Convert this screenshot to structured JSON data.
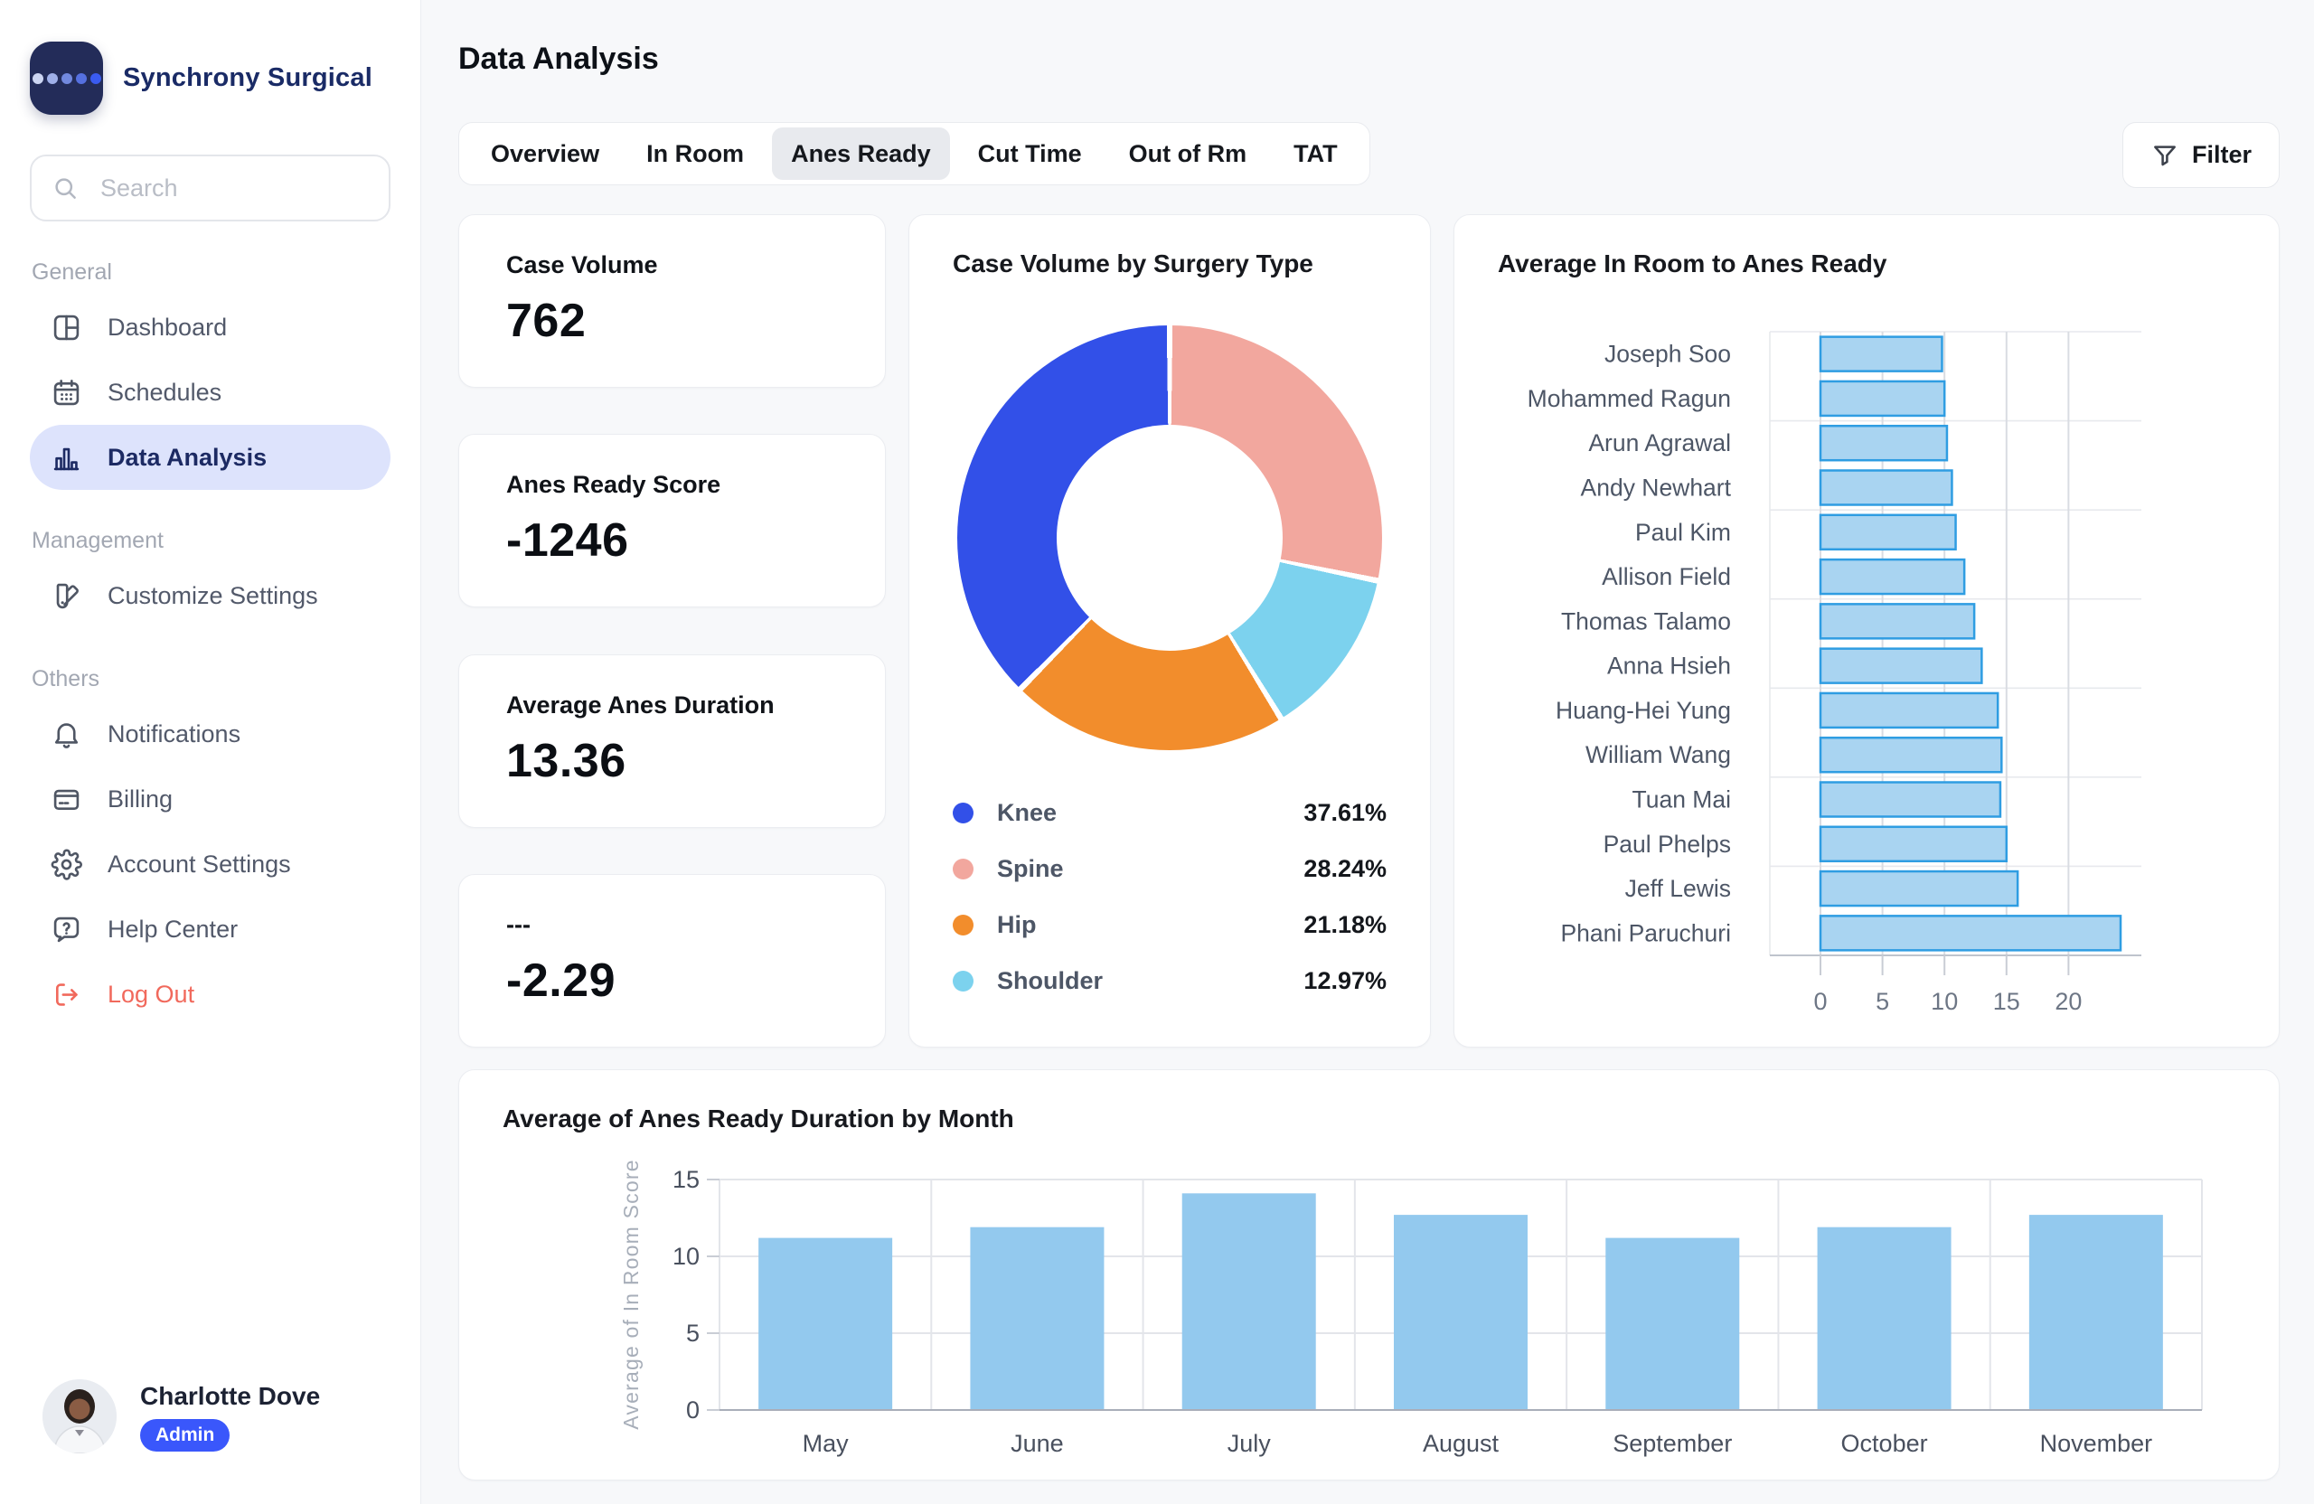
{
  "brand": {
    "name": "Synchrony Surgical",
    "logo_icon": "five-dots-logo"
  },
  "search": {
    "placeholder": "Search",
    "icon": "search-icon"
  },
  "sidebar": {
    "sections": [
      {
        "label": "General",
        "items": [
          {
            "label": "Dashboard",
            "icon": "dashboard",
            "active": false
          },
          {
            "label": "Schedules",
            "icon": "calendar",
            "active": false
          },
          {
            "label": "Data Analysis",
            "icon": "bar-chart",
            "active": true
          }
        ]
      },
      {
        "label": "Management",
        "items": [
          {
            "label": "Customize Settings",
            "icon": "swatches",
            "active": false
          }
        ]
      },
      {
        "label": "Others",
        "items": [
          {
            "label": "Notifications",
            "icon": "bell",
            "active": false
          },
          {
            "label": "Billing",
            "icon": "credit-card",
            "active": false
          },
          {
            "label": "Account Settings",
            "icon": "gear",
            "active": false
          },
          {
            "label": "Help Center",
            "icon": "help",
            "active": false
          },
          {
            "label": "Log Out",
            "icon": "logout",
            "active": false,
            "danger": true
          }
        ]
      }
    ]
  },
  "user": {
    "name": "Charlotte Dove",
    "badge": "Admin"
  },
  "header": {
    "title": "Data Analysis"
  },
  "tabs": {
    "items": [
      "Overview",
      "In Room",
      "Anes Ready",
      "Cut Time",
      "Out of Rm",
      "TAT"
    ],
    "active": "Anes Ready"
  },
  "filter": {
    "label": "Filter",
    "icon": "funnel-icon"
  },
  "stats": [
    {
      "label": "Case Volume",
      "value": "762"
    },
    {
      "label": "Anes Ready Score",
      "value": "-1246"
    },
    {
      "label": "Average Anes Duration",
      "value": "13.36"
    },
    {
      "label": "---",
      "value": "-2.29"
    }
  ],
  "colors": {
    "accent_blue": "#3a57fb",
    "active_nav_bg": "#dde3fc",
    "knee_blue": "#3250e8",
    "spine_salmon": "#f2a79e",
    "hip_orange": "#f28d2c",
    "shoulder_lightblue": "#7cd2ee",
    "hbar_fill": "#a9d4f1",
    "hbar_stroke": "#2f9de2",
    "vbar_fill": "#93c9ee",
    "logout_red": "#f1695c"
  },
  "chart_data": [
    {
      "type": "pie",
      "donut": true,
      "title": "Case Volume by Surgery Type",
      "legend_position": "bottom",
      "value_format": "percent",
      "slices": [
        {
          "label": "Knee",
          "value": 37.61,
          "color": "#3250e8"
        },
        {
          "label": "Spine",
          "value": 28.24,
          "color": "#f2a79e"
        },
        {
          "label": "Hip",
          "value": 21.18,
          "color": "#f28d2c"
        },
        {
          "label": "Shoulder",
          "value": 12.97,
          "color": "#7cd2ee"
        }
      ],
      "draw_order_clockwise_from_top": [
        "Spine",
        "Shoulder",
        "Hip",
        "Knee"
      ]
    },
    {
      "type": "bar",
      "orientation": "horizontal",
      "title": "Average In Room to Anes Ready",
      "categories": [
        "Joseph Soo",
        "Mohammed Ragun",
        "Arun Agrawal",
        "Andy Newhart",
        "Paul Kim",
        "Allison Field",
        "Thomas Talamo",
        "Anna Hsieh",
        "Huang-Hei Yung",
        "William Wang",
        "Tuan Mai",
        "Paul Phelps",
        "Jeff Lewis",
        "Phani Paruchuri"
      ],
      "values": [
        9.8,
        10.0,
        10.2,
        10.6,
        10.9,
        11.6,
        12.4,
        13.0,
        14.3,
        14.6,
        14.5,
        15.0,
        15.9,
        24.2
      ],
      "xticks": [
        0,
        5,
        10,
        15,
        20
      ],
      "xlim": [
        0,
        25
      ],
      "grid": true
    },
    {
      "type": "bar",
      "orientation": "vertical",
      "title": "Average of Anes Ready Duration by Month",
      "ylabel": "Average of In Room Score",
      "categories": [
        "May",
        "June",
        "July",
        "August",
        "September",
        "October",
        "November"
      ],
      "values": [
        11.2,
        11.9,
        14.1,
        12.7,
        11.2,
        11.9,
        12.7
      ],
      "yticks": [
        0,
        5,
        10,
        15
      ],
      "ylim": [
        0,
        15
      ],
      "grid": true
    }
  ]
}
